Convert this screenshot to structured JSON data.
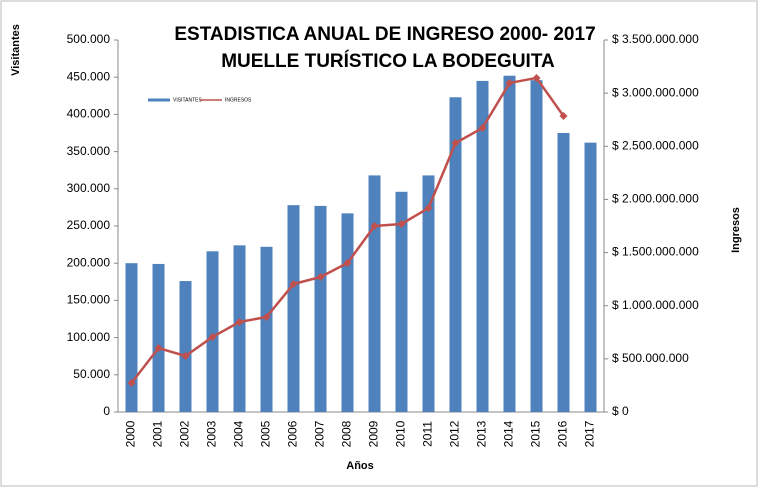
{
  "chart_data": {
    "type": "bar_line",
    "title": "ESTADISTICA ANUAL DE INGRESO 2000- 2017",
    "subtitle": "MUELLE TURÍSTICO LA BODEGUITA",
    "x_label": "Años",
    "y_label": "Visitantes",
    "y2_label": "Ingresos",
    "categories": [
      "2000",
      "2001",
      "2002",
      "2003",
      "2004",
      "2005",
      "2006",
      "2007",
      "2008",
      "2009",
      "2010",
      "2011",
      "2012",
      "2013",
      "2014",
      "2015",
      "2016",
      "2017"
    ],
    "series": [
      {
        "name": "VISITANTES",
        "type": "bar",
        "color": "#4f81bd",
        "values": [
          200000,
          199000,
          176000,
          216000,
          224000,
          222000,
          278000,
          277000,
          267000,
          318000,
          296000,
          318000,
          423000,
          445000,
          452000,
          446000,
          375000,
          362000
        ]
      },
      {
        "name": "INGRESOS",
        "type": "line",
        "axis": "y2",
        "color": "#c0504d",
        "values": [
          273000000,
          602000000,
          527000000,
          706000000,
          847000000,
          894000000,
          1204000000,
          1270000000,
          1402000000,
          1750000000,
          1769000000,
          1919000000,
          2531000000,
          2672000000,
          3096000000,
          3143000000,
          2785000000,
          null
        ]
      }
    ],
    "ylim": [
      0,
      500000
    ],
    "yticks": [
      0,
      {
        "value": 50000,
        "label": "50.000"
      },
      {
        "value": 100000,
        "label": "100.000"
      },
      {
        "value": 150000,
        "label": "150.000"
      },
      {
        "value": 200000,
        "label": "200.000"
      },
      {
        "value": 250000,
        "label": "250.000"
      },
      {
        "value": 300000,
        "label": "300.000"
      },
      {
        "value": 350000,
        "label": "350.000"
      },
      {
        "value": 400000,
        "label": "400.000"
      },
      {
        "value": 450000,
        "label": "450.000"
      },
      {
        "value": 500000,
        "label": "500.000"
      }
    ],
    "y2lim": [
      0,
      3500000000
    ],
    "y2ticks": [
      {
        "value": 0,
        "label": "$ 0"
      },
      {
        "value": 500000000,
        "label": "$ 500.000.000"
      },
      {
        "value": 1000000000,
        "label": "$ 1.000.000.000"
      },
      {
        "value": 1500000000,
        "label": "$ 1.500.000.000"
      },
      {
        "value": 2000000000,
        "label": "$ 2.000.000.000"
      },
      {
        "value": 2500000000,
        "label": "$ 2.500.000.000"
      },
      {
        "value": 3000000000,
        "label": "$ 3.000.000.000"
      },
      {
        "value": 3500000000,
        "label": "$ 3.500.000.000"
      }
    ],
    "legend": "top-left"
  }
}
